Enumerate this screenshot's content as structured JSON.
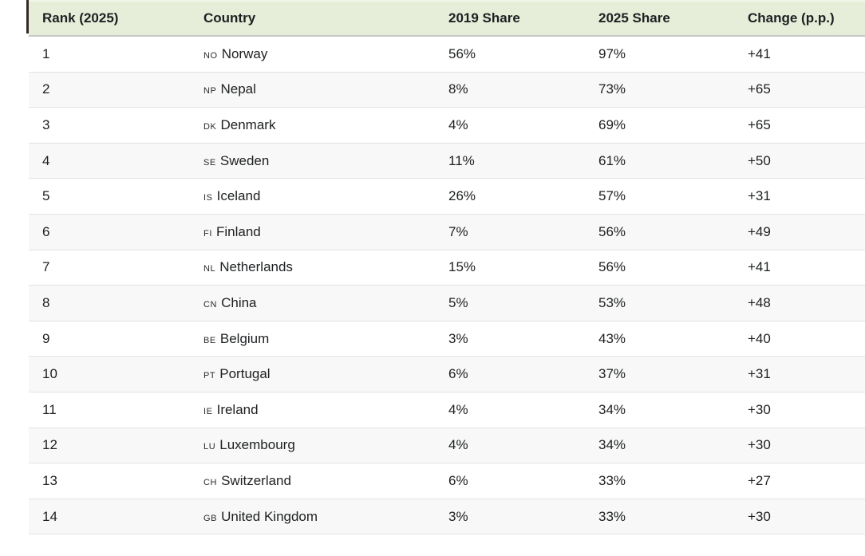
{
  "colors": {
    "header_bg": "#e6eed9",
    "alt_row_bg": "#f8f8f8",
    "row_border": "#e3e3e3",
    "header_border": "#c8c8c8",
    "text": "#1d1f21",
    "edge_mark": "#362a26"
  },
  "table": {
    "columns": [
      {
        "label": "Rank (2025)"
      },
      {
        "label": "Country"
      },
      {
        "label": "2019 Share"
      },
      {
        "label": "2025 Share"
      },
      {
        "label": "Change (p.p.)"
      }
    ],
    "rows": [
      {
        "rank": "1",
        "code": "NO",
        "country": "Norway",
        "share_2019": "56%",
        "share_2025": "97%",
        "change": "+41"
      },
      {
        "rank": "2",
        "code": "NP",
        "country": "Nepal",
        "share_2019": "8%",
        "share_2025": "73%",
        "change": "+65"
      },
      {
        "rank": "3",
        "code": "DK",
        "country": "Denmark",
        "share_2019": "4%",
        "share_2025": "69%",
        "change": "+65"
      },
      {
        "rank": "4",
        "code": "SE",
        "country": "Sweden",
        "share_2019": "11%",
        "share_2025": "61%",
        "change": "+50"
      },
      {
        "rank": "5",
        "code": "IS",
        "country": "Iceland",
        "share_2019": "26%",
        "share_2025": "57%",
        "change": "+31"
      },
      {
        "rank": "6",
        "code": "FI",
        "country": "Finland",
        "share_2019": "7%",
        "share_2025": "56%",
        "change": "+49"
      },
      {
        "rank": "7",
        "code": "NL",
        "country": "Netherlands",
        "share_2019": "15%",
        "share_2025": "56%",
        "change": "+41"
      },
      {
        "rank": "8",
        "code": "CN",
        "country": "China",
        "share_2019": "5%",
        "share_2025": "53%",
        "change": "+48"
      },
      {
        "rank": "9",
        "code": "BE",
        "country": "Belgium",
        "share_2019": "3%",
        "share_2025": "43%",
        "change": "+40"
      },
      {
        "rank": "10",
        "code": "PT",
        "country": "Portugal",
        "share_2019": "6%",
        "share_2025": "37%",
        "change": "+31"
      },
      {
        "rank": "11",
        "code": "IE",
        "country": "Ireland",
        "share_2019": "4%",
        "share_2025": "34%",
        "change": "+30"
      },
      {
        "rank": "12",
        "code": "LU",
        "country": "Luxembourg",
        "share_2019": "4%",
        "share_2025": "34%",
        "change": "+30"
      },
      {
        "rank": "13",
        "code": "CH",
        "country": "Switzerland",
        "share_2019": "6%",
        "share_2025": "33%",
        "change": "+27"
      },
      {
        "rank": "14",
        "code": "GB",
        "country": "United Kingdom",
        "share_2019": "3%",
        "share_2025": "33%",
        "change": "+30"
      }
    ]
  },
  "chart_data": {
    "type": "table",
    "title": "",
    "columns": [
      "Rank (2025)",
      "Country",
      "2019 Share",
      "2025 Share",
      "Change (p.p.)"
    ],
    "rows": [
      [
        1,
        "Norway",
        56,
        97,
        41
      ],
      [
        2,
        "Nepal",
        8,
        73,
        65
      ],
      [
        3,
        "Denmark",
        4,
        69,
        65
      ],
      [
        4,
        "Sweden",
        11,
        61,
        50
      ],
      [
        5,
        "Iceland",
        26,
        57,
        31
      ],
      [
        6,
        "Finland",
        7,
        56,
        49
      ],
      [
        7,
        "Netherlands",
        15,
        56,
        41
      ],
      [
        8,
        "China",
        5,
        53,
        48
      ],
      [
        9,
        "Belgium",
        3,
        43,
        40
      ],
      [
        10,
        "Portugal",
        6,
        37,
        31
      ],
      [
        11,
        "Ireland",
        4,
        34,
        30
      ],
      [
        12,
        "Luxembourg",
        4,
        34,
        30
      ],
      [
        13,
        "Switzerland",
        6,
        33,
        27
      ],
      [
        14,
        "United Kingdom",
        3,
        33,
        30
      ]
    ],
    "units": {
      "share_2019": "percent",
      "share_2025": "percent",
      "change": "percentage points"
    },
    "layout": {
      "zebra_striping": true,
      "header_background": "#e6eed9",
      "alignment": "left"
    }
  }
}
